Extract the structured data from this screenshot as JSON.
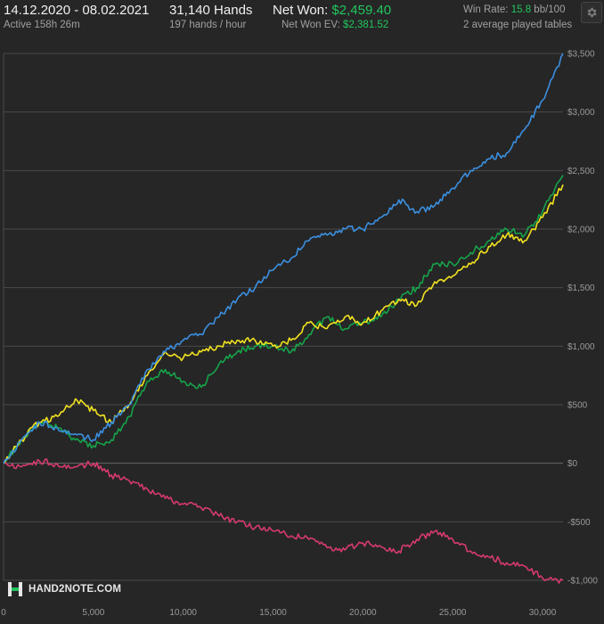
{
  "header": {
    "date_range": "14.12.2020 - 08.02.2021",
    "active": "Active 158h 26m",
    "hands": "31,140 Hands",
    "hands_per_hour": "197 hands / hour",
    "net_won_label": "Net Won:",
    "net_won_value": "$2,459.40",
    "net_won_ev_label": "Net Won  EV:",
    "net_won_ev_value": "$2,381.52",
    "win_rate_label": "Win Rate:",
    "win_rate_value": "15.8",
    "win_rate_unit": "bb/100",
    "tables": "2 average played tables",
    "settings_icon": "gear-icon"
  },
  "brand": {
    "name": "HAND2NOTE.COM",
    "icon": "h2n-logo-icon"
  },
  "colors": {
    "background": "#262626",
    "grid": "#4a4a4a",
    "blue": "#3b8fe0",
    "green": "#16a34a",
    "yellow": "#f2e21f",
    "pink": "#d63a6e"
  },
  "chart_data": {
    "type": "line",
    "xlim": [
      0,
      31140
    ],
    "ylim": [
      -1000,
      3500
    ],
    "y_ticks": [
      -1000,
      -500,
      0,
      500,
      1000,
      1500,
      2000,
      2500,
      3000,
      3500
    ],
    "y_tick_labels": [
      "-$1,000",
      "-$500",
      "$0",
      "$500",
      "$1,000",
      "$1,500",
      "$2,000",
      "$2,500",
      "$3,000",
      "$3,500"
    ],
    "x_ticks": [
      0,
      5000,
      10000,
      15000,
      20000,
      25000,
      30000
    ],
    "x_tick_labels": [
      "0",
      "5,000",
      "10,000",
      "15,000",
      "20,000",
      "25,000",
      "30,000"
    ],
    "grid": true,
    "series": [
      {
        "color": "blue",
        "x": [
          0,
          1000,
          2000,
          3000,
          4000,
          5000,
          6000,
          7000,
          8000,
          9000,
          10000,
          11000,
          12000,
          13000,
          14000,
          15000,
          16000,
          17000,
          18000,
          19000,
          20000,
          21000,
          22000,
          23000,
          24000,
          25000,
          26000,
          27000,
          28000,
          29000,
          30000,
          31140
        ],
        "values": [
          0,
          200,
          350,
          300,
          250,
          200,
          350,
          500,
          800,
          950,
          1050,
          1100,
          1250,
          1400,
          1500,
          1650,
          1750,
          1900,
          1950,
          2000,
          2000,
          2100,
          2250,
          2150,
          2200,
          2350,
          2500,
          2600,
          2650,
          2850,
          3100,
          3500
        ]
      },
      {
        "color": "green",
        "x": [
          0,
          1000,
          2000,
          3000,
          4000,
          5000,
          6000,
          7000,
          8000,
          9000,
          10000,
          11000,
          12000,
          13000,
          14000,
          15000,
          16000,
          17000,
          18000,
          19000,
          20000,
          21000,
          22000,
          23000,
          24000,
          25000,
          26000,
          27000,
          28000,
          29000,
          30000,
          31140
        ],
        "values": [
          0,
          200,
          350,
          300,
          200,
          150,
          200,
          400,
          700,
          800,
          700,
          650,
          850,
          950,
          1000,
          1000,
          950,
          1100,
          1250,
          1150,
          1200,
          1250,
          1400,
          1500,
          1700,
          1700,
          1800,
          1900,
          2000,
          1950,
          2150,
          2460
        ]
      },
      {
        "color": "yellow",
        "x": [
          0,
          1000,
          2000,
          3000,
          4000,
          5000,
          6000,
          7000,
          8000,
          9000,
          10000,
          11000,
          12000,
          13000,
          14000,
          15000,
          16000,
          17000,
          18000,
          19000,
          20000,
          21000,
          22000,
          23000,
          24000,
          25000,
          26000,
          27000,
          28000,
          29000,
          30000,
          31140
        ],
        "values": [
          0,
          200,
          350,
          400,
          550,
          450,
          350,
          500,
          750,
          950,
          900,
          950,
          1000,
          1050,
          1050,
          1000,
          1050,
          1200,
          1150,
          1250,
          1200,
          1300,
          1400,
          1350,
          1550,
          1600,
          1700,
          1850,
          1950,
          1900,
          2100,
          2380
        ]
      },
      {
        "color": "pink",
        "x": [
          0,
          1000,
          2000,
          3000,
          4000,
          5000,
          6000,
          7000,
          8000,
          9000,
          10000,
          11000,
          12000,
          13000,
          14000,
          15000,
          16000,
          17000,
          18000,
          19000,
          20000,
          21000,
          22000,
          23000,
          24000,
          25000,
          26000,
          27000,
          28000,
          29000,
          30000,
          31140
        ],
        "values": [
          0,
          -30,
          20,
          -10,
          -30,
          0,
          -100,
          -150,
          -220,
          -300,
          -350,
          -380,
          -450,
          -500,
          -550,
          -580,
          -620,
          -650,
          -720,
          -740,
          -680,
          -710,
          -750,
          -650,
          -580,
          -650,
          -750,
          -800,
          -850,
          -880,
          -980,
          -1000
        ]
      }
    ]
  }
}
